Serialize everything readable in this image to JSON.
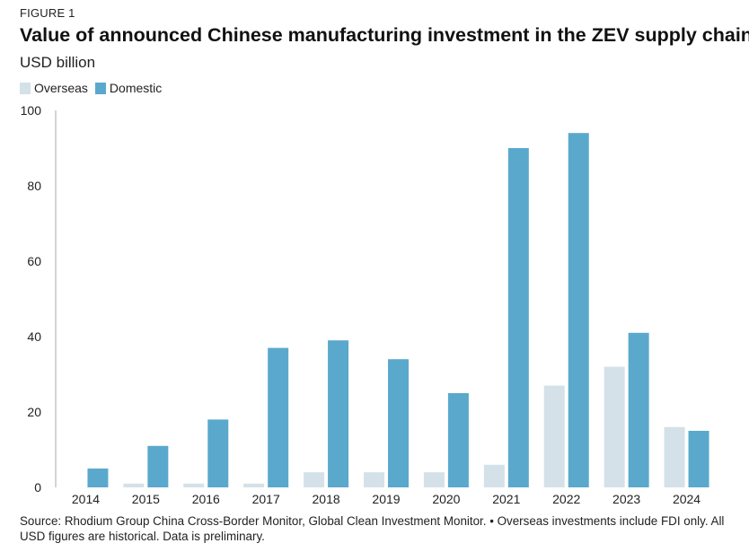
{
  "figure_label": "FIGURE 1",
  "title": "Value of announced Chinese manufacturing investment in the ZEV supply chain",
  "subtitle": "USD billion",
  "source_note": "Source: Rhodium Group China Cross-Border Monitor, Global Clean Investment Monitor. • Overseas investments include FDI only. All USD figures are historical. Data is preliminary.",
  "colors": {
    "overseas": "#d5e1e8",
    "domestic": "#5aa9cc",
    "axis": "#aaaaaa"
  },
  "chart_data": {
    "type": "bar",
    "title": "Value of announced Chinese manufacturing investment in the ZEV supply chain",
    "ylabel": "USD billion",
    "xlabel": "",
    "categories": [
      "2014",
      "2015",
      "2016",
      "2017",
      "2018",
      "2019",
      "2020",
      "2021",
      "2022",
      "2023",
      "2024"
    ],
    "series": [
      {
        "name": "Overseas",
        "values": [
          0,
          1,
          1,
          1,
          4,
          4,
          4,
          6,
          27,
          32,
          16
        ]
      },
      {
        "name": "Domestic",
        "values": [
          5,
          11,
          18,
          37,
          39,
          34,
          25,
          90,
          94,
          41,
          15
        ]
      }
    ],
    "ylim": [
      0,
      100
    ],
    "yticks": [
      0,
      20,
      40,
      60,
      80,
      100
    ],
    "grid": false,
    "legend": "top-left"
  }
}
